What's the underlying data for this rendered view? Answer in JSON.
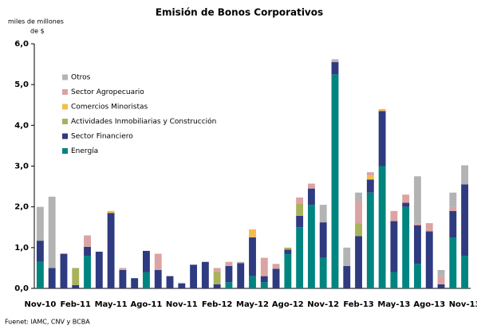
{
  "chart_data": {
    "type": "stacked_bar",
    "title": "Emisión de Bonos Corporativos",
    "ylabel": [
      "miles de millones",
      "de $"
    ],
    "source": "Fuenet: IAMC, CNV y BCBA",
    "categories": [
      "Nov-10",
      null,
      null,
      "Feb-11",
      null,
      null,
      "May-11",
      null,
      null,
      "Ago-11",
      null,
      null,
      "Nov-11",
      null,
      null,
      "Feb-12",
      null,
      null,
      "May-12",
      null,
      null,
      "Ago-12",
      null,
      null,
      "Nov-12",
      null,
      null,
      "Feb-13",
      null,
      null,
      "May-13",
      null,
      null,
      "Ago-13",
      null,
      null,
      "Nov-13"
    ],
    "series": [
      {
        "name": "Energía",
        "color": "#00847f",
        "values": [
          0.65,
          0,
          0,
          0,
          0.8,
          0,
          0,
          0,
          0,
          0.4,
          0,
          0,
          0,
          0,
          0,
          0,
          0.15,
          0,
          0.3,
          0.15,
          0,
          0.85,
          1.5,
          2.05,
          0.75,
          5.25,
          0,
          0,
          2.35,
          3.0,
          0.4,
          2.0,
          0.6,
          0,
          0,
          1.25,
          0.8
        ]
      },
      {
        "name": "Sector Financiero",
        "color": "#2e3b80",
        "values": [
          0.52,
          0.5,
          0.85,
          0.08,
          0.22,
          0.9,
          1.85,
          0.45,
          0.25,
          0.52,
          0.45,
          0.3,
          0.12,
          0.58,
          0.65,
          0.1,
          0.4,
          0.62,
          0.95,
          0.15,
          0.48,
          0.1,
          0.28,
          0.4,
          0.87,
          0.3,
          0.55,
          1.28,
          0.32,
          1.35,
          1.25,
          0.1,
          0.95,
          1.4,
          0.1,
          0.65,
          1.75
        ]
      },
      {
        "name": "Actividades Inmobiliarias y Construcción",
        "color": "#a9b25a",
        "values": [
          0,
          0,
          0,
          0.42,
          0,
          0,
          0,
          0,
          0,
          0,
          0,
          0,
          0,
          0,
          0,
          0.3,
          0,
          0,
          0,
          0,
          0,
          0.05,
          0.3,
          0,
          0,
          0,
          0,
          0.32,
          0,
          0,
          0,
          0,
          0,
          0,
          0,
          0,
          0
        ]
      },
      {
        "name": "Comercios Minoristas",
        "color": "#f6bb4e",
        "values": [
          0,
          0,
          0,
          0,
          0,
          0,
          0.05,
          0,
          0,
          0,
          0,
          0,
          0,
          0,
          0,
          0,
          0,
          0,
          0.2,
          0,
          0,
          0,
          0,
          0,
          0,
          0,
          0,
          0,
          0.1,
          0.05,
          0,
          0,
          0,
          0,
          0,
          0,
          0
        ]
      },
      {
        "name": "Sector Agropecuario",
        "color": "#dba3a3",
        "values": [
          0,
          0,
          0,
          0,
          0.28,
          0,
          0,
          0.05,
          0,
          0,
          0.4,
          0,
          0,
          0,
          0,
          0.1,
          0.1,
          0,
          0,
          0.45,
          0.12,
          0,
          0.15,
          0.12,
          0,
          0,
          0,
          0.55,
          0.08,
          0,
          0.25,
          0.2,
          0.05,
          0.2,
          0.2,
          0.1,
          0
        ]
      },
      {
        "name": "Otros",
        "color": "#b3b3b3",
        "values": [
          0.83,
          1.75,
          0,
          0,
          0,
          0,
          0,
          0,
          0,
          0,
          0,
          0,
          0.02,
          0,
          0,
          0,
          0,
          0.03,
          0,
          0,
          0,
          0,
          0,
          0,
          0.43,
          0.07,
          0.45,
          0.2,
          0,
          0,
          0,
          0,
          1.15,
          0,
          0.15,
          0.35,
          0.47
        ]
      }
    ],
    "ylim": [
      0,
      6
    ],
    "yticks": [
      {
        "value": 0,
        "label": "0,0"
      },
      {
        "value": 1,
        "label": "1,0"
      },
      {
        "value": 2,
        "label": "2,0"
      },
      {
        "value": 3,
        "label": "3,0"
      },
      {
        "value": 4,
        "label": "4,0"
      },
      {
        "value": 5,
        "label": "5,0"
      },
      {
        "value": 6,
        "label": "6,0"
      }
    ],
    "legend": "upper left"
  }
}
